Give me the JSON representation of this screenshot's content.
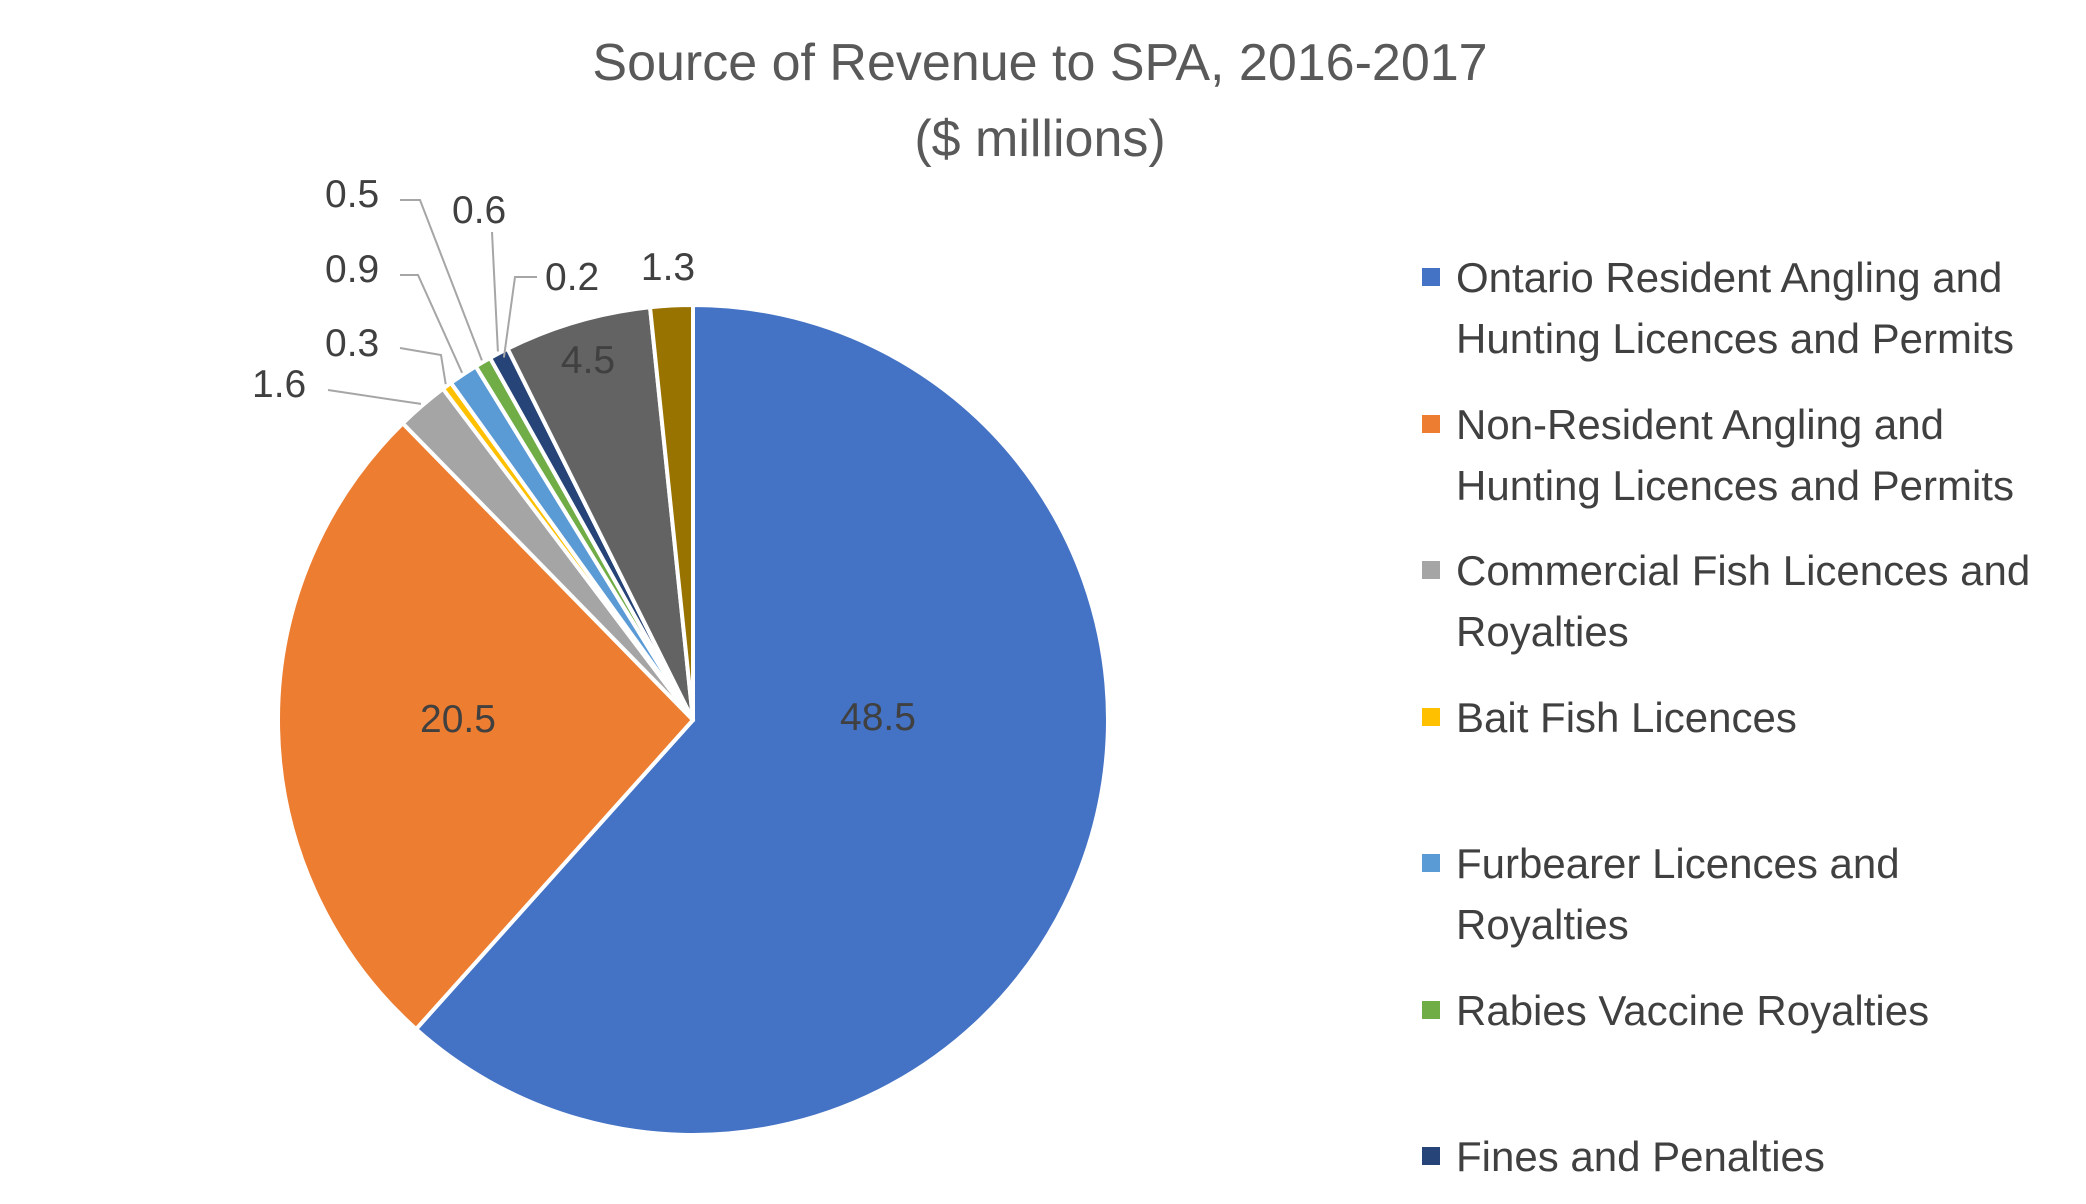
{
  "chart_data": {
    "type": "pie",
    "title": [
      "Source of Revenue to SPA, 2016-2017",
      "($ millions)"
    ],
    "categories": [
      "Ontario Resident Angling and Hunting Licences and Permits",
      "Non-Resident Angling and Hunting Licences and Permits",
      "Commercial Fish Licences and Royalties",
      "Bait Fish Licences",
      "Furbearer Licences and Royalties",
      "Rabies Vaccine Royalties",
      "Fines and Penalties",
      "",
      ""
    ],
    "values": [
      48.5,
      20.5,
      1.6,
      0.3,
      0.9,
      0.5,
      0.6,
      4.5,
      1.3
    ],
    "value_labels": [
      "48.5",
      "20.5",
      "1.6",
      "0.3",
      "0.9",
      "0.5",
      "0.6",
      "4.5",
      "1.3"
    ],
    "extra_label": "0.2",
    "colors": [
      "#4472c4",
      "#ed7d31",
      "#a5a5a5",
      "#ffc000",
      "#5b9bd5",
      "#70ad47",
      "#264478",
      "#636363",
      "#997300"
    ],
    "legend": {
      "placement": "right",
      "entries": [
        [
          "Ontario Resident Angling and",
          "Hunting Licences and Permits"
        ],
        [
          "Non-Resident Angling and",
          "Hunting Licences and Permits"
        ],
        [
          "Commercial Fish Licences and",
          "Royalties"
        ],
        [
          "Bait Fish Licences"
        ],
        [
          "Furbearer Licences and",
          "Royalties"
        ],
        [
          "Rabies Vaccine Royalties"
        ],
        [
          "Fines and Penalties"
        ]
      ]
    }
  }
}
